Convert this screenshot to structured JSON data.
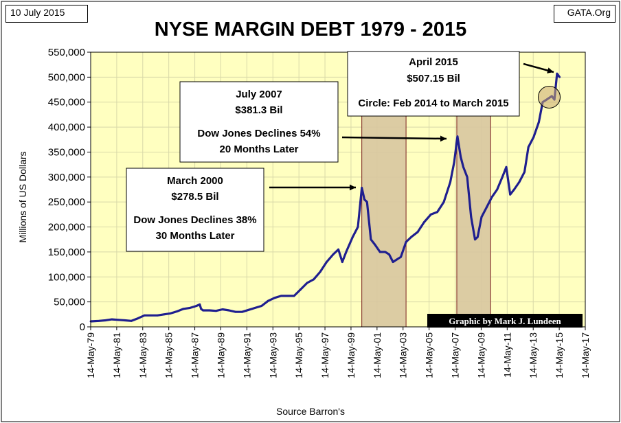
{
  "header": {
    "date_tag": "10 July 2015",
    "source_tag": "GATA.Org"
  },
  "chart_data": {
    "type": "line",
    "title": "NYSE MARGIN DEBT 1979 - 2015",
    "xlabel": "Source Barron's",
    "ylabel": "Millions of US Dollars",
    "ylim": [
      0,
      550000
    ],
    "xlim": [
      1979.37,
      2017.37
    ],
    "grid": true,
    "legend": "none",
    "credit": "Graphic by Mark J. Lundeen",
    "colors": {
      "background": "#ffffc0",
      "line": "#1f1f8f",
      "shade": "#d8c6a0",
      "shade_border": "#7a1f1f",
      "grid": "#d8d8a8",
      "credit_bg": "#000000",
      "credit_fg": "#ffffff"
    },
    "y_ticks": [
      "0",
      "50,000",
      "100,000",
      "150,000",
      "200,000",
      "250,000",
      "300,000",
      "350,000",
      "400,000",
      "450,000",
      "500,000",
      "550,000"
    ],
    "x_ticks": [
      "14-May-79",
      "14-May-81",
      "14-May-83",
      "14-May-85",
      "14-May-87",
      "14-May-89",
      "14-May-91",
      "14-May-93",
      "14-May-95",
      "14-May-97",
      "14-May-99",
      "14-May-01",
      "14-May-03",
      "14-May-05",
      "14-May-07",
      "14-May-09",
      "14-May-11",
      "14-May-13",
      "14-May-15",
      "14-May-17"
    ],
    "shaded_ranges": [
      [
        2000.2,
        2003.6
      ],
      [
        2007.5,
        2010.1
      ]
    ],
    "highlight_circle": {
      "from": "Feb 2014",
      "to": "March 2015",
      "center": [
        2014.6,
        460000
      ]
    },
    "series": [
      {
        "x": [
          1979.37,
          1980.0,
          1980.5,
          1981.0,
          1981.5,
          1982.0,
          1982.5,
          1983.0,
          1983.5,
          1984.0,
          1984.5,
          1985.0,
          1985.5,
          1986.0,
          1986.5,
          1987.0,
          1987.5,
          1987.75,
          1987.85,
          1988.0,
          1988.5,
          1989.0,
          1989.5,
          1990.0,
          1990.5,
          1991.0,
          1991.5,
          1992.0,
          1992.5,
          1993.0,
          1993.5,
          1994.0,
          1994.5,
          1995.0,
          1995.5,
          1996.0,
          1996.5,
          1997.0,
          1997.5,
          1998.0,
          1998.4,
          1998.7,
          1999.0,
          1999.5,
          1999.9,
          2000.2,
          2000.4,
          2000.6,
          2000.9,
          2001.2,
          2001.6,
          2002.0,
          2002.3,
          2002.6,
          2002.9,
          2003.2,
          2003.6,
          2004.0,
          2004.5,
          2005.0,
          2005.5,
          2006.0,
          2006.5,
          2007.0,
          2007.3,
          2007.55,
          2007.8,
          2008.0,
          2008.3,
          2008.6,
          2008.9,
          2009.1,
          2009.4,
          2009.8,
          2010.2,
          2010.6,
          2011.0,
          2011.3,
          2011.6,
          2011.9,
          2012.3,
          2012.7,
          2013.0,
          2013.4,
          2013.8,
          2014.1,
          2014.4,
          2014.8,
          2015.0,
          2015.2,
          2015.4
        ],
        "y": [
          11000,
          12000,
          13000,
          15000,
          14000,
          13000,
          12000,
          17000,
          23000,
          23000,
          23000,
          25000,
          27000,
          31000,
          36000,
          38000,
          42000,
          45000,
          36000,
          33000,
          33000,
          32000,
          35000,
          33000,
          30000,
          30000,
          34000,
          38000,
          42000,
          52000,
          58000,
          62000,
          62000,
          62000,
          75000,
          88000,
          95000,
          110000,
          130000,
          145000,
          155000,
          130000,
          150000,
          180000,
          200000,
          278500,
          255000,
          250000,
          175000,
          165000,
          150000,
          150000,
          145000,
          130000,
          135000,
          140000,
          170000,
          180000,
          190000,
          210000,
          225000,
          230000,
          250000,
          290000,
          330000,
          381300,
          340000,
          320000,
          300000,
          220000,
          175000,
          180000,
          220000,
          240000,
          260000,
          275000,
          300000,
          320000,
          265000,
          275000,
          290000,
          310000,
          360000,
          380000,
          410000,
          450000,
          455000,
          462000,
          455000,
          507150,
          500000
        ]
      }
    ],
    "annotations": [
      {
        "title": "March 2000",
        "value": "$278.5 Bil",
        "line3": "Dow Jones Declines 38%",
        "line4": "30 Months Later",
        "points_to": [
          2000.2,
          278500
        ]
      },
      {
        "title": "July 2007",
        "value": "$381.3 Bil",
        "line3": "Dow Jones Declines 54%",
        "line4": "20 Months Later",
        "points_to": [
          2007.55,
          381300
        ]
      },
      {
        "title": "April 2015",
        "value": "$507.15 Bil",
        "line3": "Circle: Feb 2014 to March 2015",
        "line4": "",
        "points_to": [
          2015.2,
          507150
        ]
      }
    ]
  }
}
